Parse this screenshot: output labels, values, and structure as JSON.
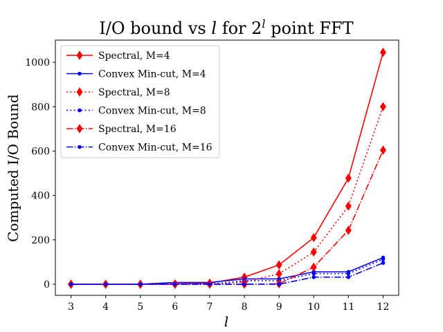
{
  "chart_data": {
    "type": "line",
    "title": "I/O bound vs l for 2^l point FFT",
    "xlabel": "l",
    "ylabel": "Computed I/O Bound",
    "x": [
      3,
      4,
      5,
      6,
      7,
      8,
      9,
      10,
      11,
      12
    ],
    "xlim": [
      2.55,
      12.45
    ],
    "ylim": [
      -50,
      1100
    ],
    "yticks": [
      0,
      200,
      400,
      600,
      800,
      1000
    ],
    "legend_position": "upper left",
    "series": [
      {
        "name": "Spectral, M=4",
        "color": "#ff0000",
        "linestyle": "solid",
        "marker": "diamond",
        "values": [
          0,
          0,
          0,
          1,
          5,
          32,
          87,
          210,
          478,
          1045
        ]
      },
      {
        "name": "Convex Min-cut, M=4",
        "color": "#0000ff",
        "linestyle": "solid",
        "marker": "dot",
        "values": [
          0,
          0,
          0,
          8,
          8,
          24,
          24,
          56,
          56,
          120
        ]
      },
      {
        "name": "Spectral, M=8",
        "color": "#ff0000",
        "linestyle": "dotted",
        "marker": "diamond",
        "values": [
          0,
          0,
          0,
          0,
          1,
          10,
          47,
          145,
          352,
          800
        ]
      },
      {
        "name": "Convex Min-cut, M=8",
        "color": "#0000ff",
        "linestyle": "dotted",
        "marker": "dot",
        "values": [
          0,
          0,
          0,
          0,
          0,
          16,
          16,
          48,
          48,
          112
        ]
      },
      {
        "name": "Spectral, M=16",
        "color": "#ff0000",
        "linestyle": "dashdot",
        "marker": "diamond",
        "values": [
          0,
          0,
          0,
          0,
          0,
          0,
          2,
          77,
          243,
          604
        ]
      },
      {
        "name": "Convex Min-cut, M=16",
        "color": "#0000ff",
        "linestyle": "dashdot",
        "marker": "dot",
        "values": [
          0,
          0,
          0,
          0,
          0,
          0,
          0,
          32,
          32,
          96
        ]
      }
    ]
  }
}
